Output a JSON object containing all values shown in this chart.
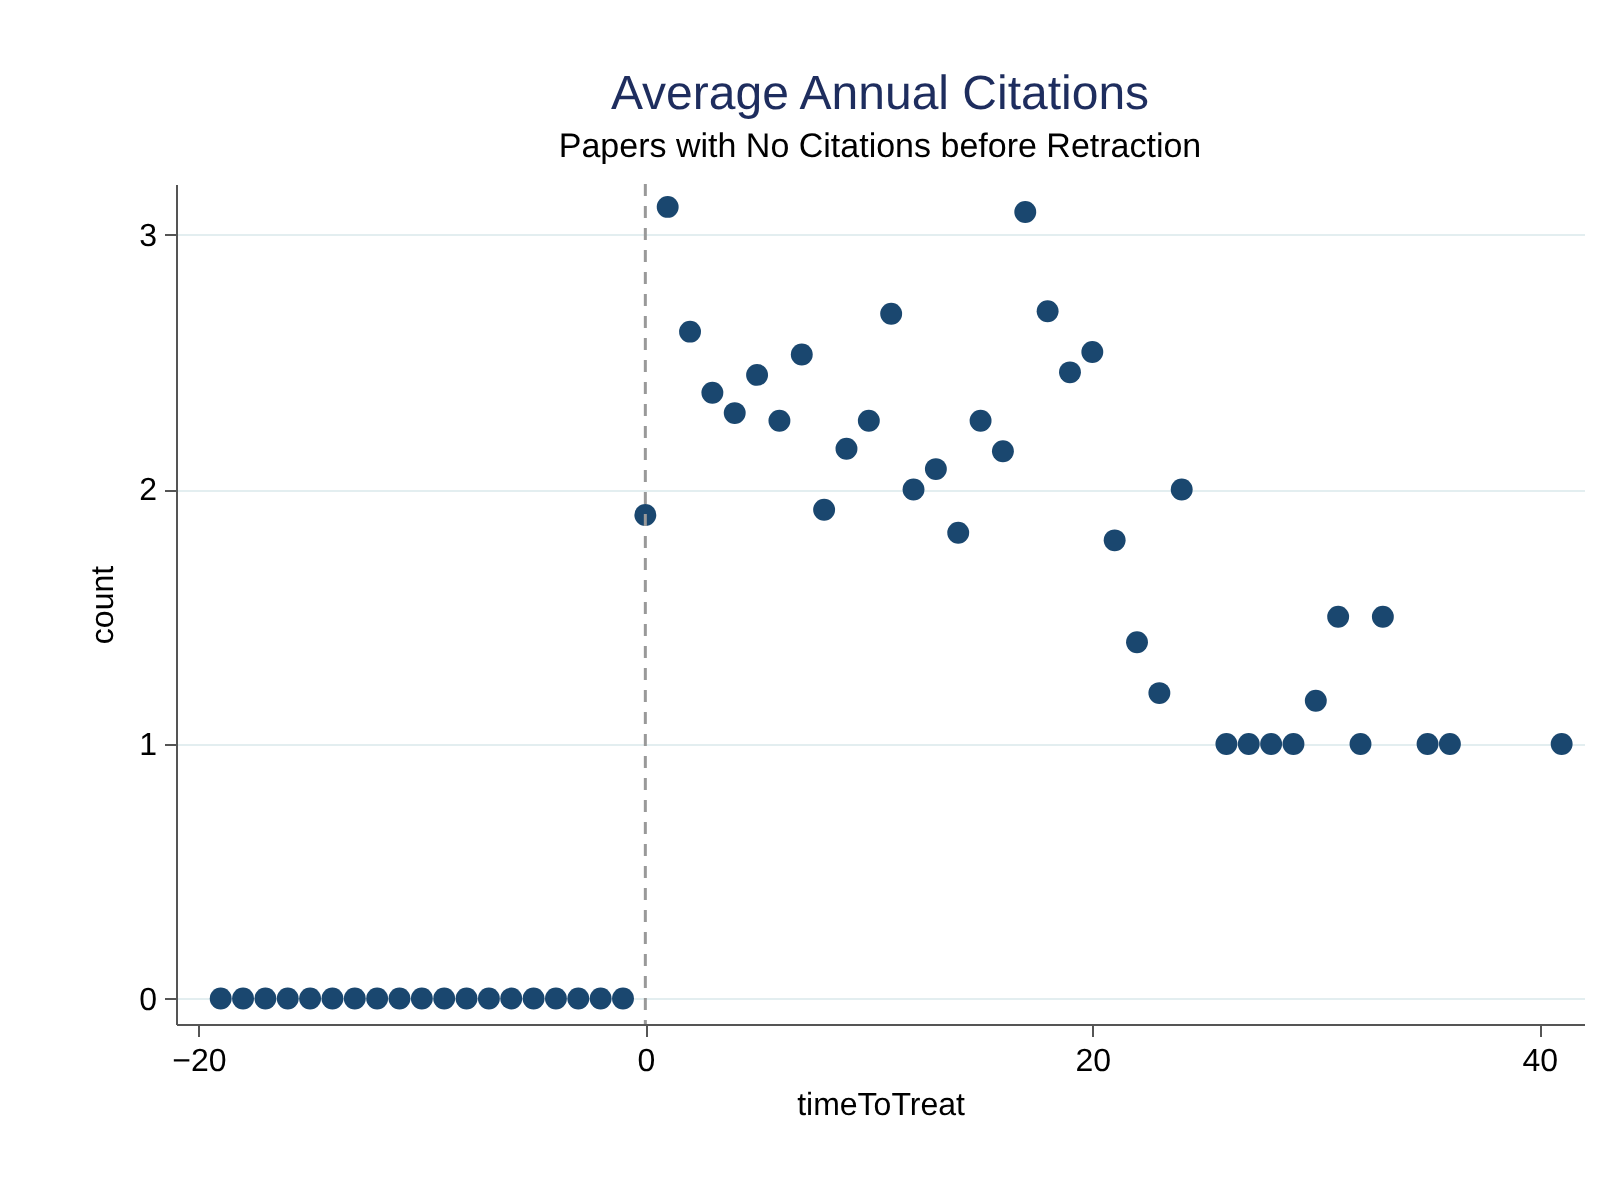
{
  "chart_data": {
    "type": "scatter",
    "title": "Average Annual Citations",
    "subtitle": "Papers with No Citations before Retraction",
    "xlabel": "timeToTreat",
    "ylabel": "count",
    "x": [
      -19,
      -18,
      -17,
      -16,
      -15,
      -14,
      -13,
      -12,
      -11,
      -10,
      -9,
      -8,
      -7,
      -6,
      -5,
      -4,
      -3,
      -2,
      -1,
      0,
      1,
      2,
      3,
      4,
      5,
      6,
      7,
      8,
      9,
      10,
      11,
      12,
      13,
      14,
      15,
      16,
      17,
      18,
      19,
      20,
      21,
      22,
      23,
      24,
      26,
      27,
      28,
      29,
      30,
      31,
      32,
      33,
      35,
      36,
      41
    ],
    "series": [
      {
        "color": "#1a476f",
        "values": [
          0,
          0,
          0,
          0,
          0,
          0,
          0,
          0,
          0,
          0,
          0,
          0,
          0,
          0,
          0,
          0,
          0,
          0,
          0,
          1.9,
          3.11,
          2.62,
          2.38,
          2.3,
          2.45,
          2.27,
          2.53,
          1.92,
          2.16,
          2.27,
          2.69,
          2.0,
          2.08,
          1.83,
          2.27,
          2.15,
          3.09,
          2.7,
          2.46,
          2.54,
          1.8,
          1.4,
          1.2,
          2.0,
          1,
          1,
          1,
          1,
          1.17,
          1.5,
          1,
          1.5,
          1,
          1,
          1
        ]
      }
    ],
    "xlim": [
      -21,
      42
    ],
    "xticks": [
      -20,
      0,
      20,
      40
    ],
    "ylim": [
      -0.1,
      3.2
    ],
    "yticks": [
      0,
      1,
      2,
      3
    ],
    "grid": "y",
    "marker": "circle",
    "legend": false,
    "ref_lines": [
      {
        "axis": "x",
        "value": 0,
        "color": "#999999",
        "line_style": "dashed"
      }
    ]
  }
}
